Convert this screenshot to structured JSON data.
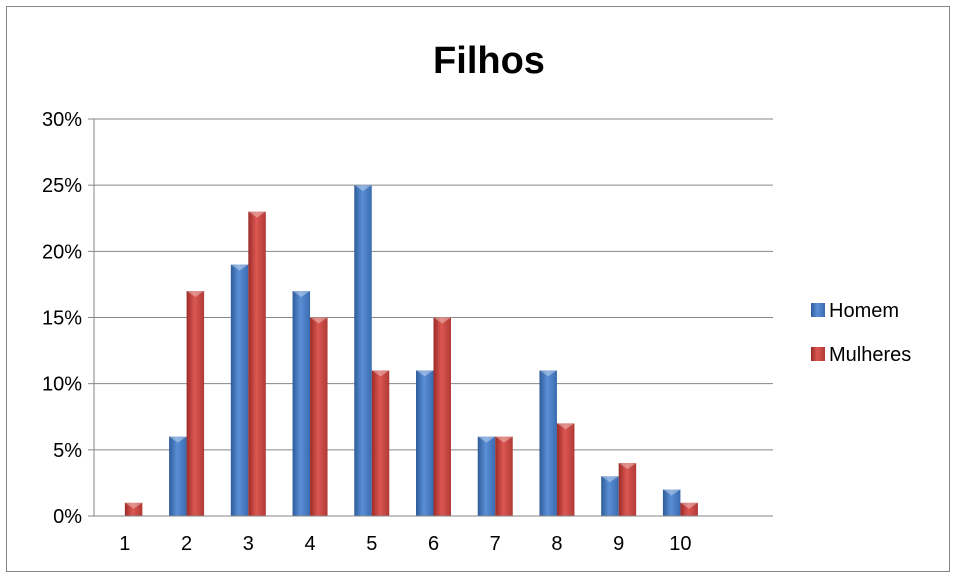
{
  "chart_data": {
    "type": "bar",
    "title": "Filhos",
    "xlabel": "",
    "ylabel": "",
    "categories": [
      "1",
      "2",
      "3",
      "4",
      "5",
      "6",
      "7",
      "8",
      "9",
      "10"
    ],
    "y_tick_labels": [
      "0%",
      "5%",
      "10%",
      "15%",
      "20%",
      "25%",
      "30%"
    ],
    "ylim": [
      0,
      30
    ],
    "y_unit": "%",
    "grid": true,
    "legend_position": "right",
    "series": [
      {
        "name": "Homem",
        "color": "#4F81BD",
        "values": [
          0,
          6,
          19,
          17,
          25,
          11,
          6,
          11,
          3,
          2
        ]
      },
      {
        "name": "Mulheres",
        "color": "#C0504D",
        "values": [
          1,
          17,
          23,
          15,
          11,
          15,
          6,
          7,
          4,
          1
        ]
      }
    ]
  }
}
